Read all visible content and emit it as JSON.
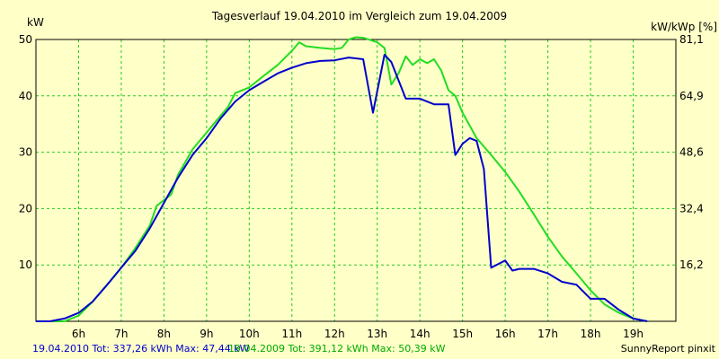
{
  "chart_data": {
    "type": "line",
    "title": "Tagesverlauf 19.04.2010 im Vergleich zum 19.04.2009",
    "ylabel_left": "kW",
    "ylabel_right": "kW/kWp [%]",
    "ylim": [
      0,
      50
    ],
    "xlim": [
      5.0,
      20.0
    ],
    "x_ticks": [
      "6h",
      "7h",
      "8h",
      "9h",
      "10h",
      "11h",
      "12h",
      "13h",
      "14h",
      "15h",
      "16h",
      "17h",
      "18h",
      "19h"
    ],
    "y_ticks_left": [
      "10",
      "20",
      "30",
      "40",
      "50"
    ],
    "y_ticks_right": [
      "16,2",
      "32,4",
      "48,6",
      "64,9",
      "81,1"
    ],
    "grid": true,
    "series": [
      {
        "name": "19.04.2010",
        "color": "#0000cc",
        "x": [
          5.0,
          5.33,
          5.67,
          6.0,
          6.33,
          6.67,
          7.0,
          7.33,
          7.67,
          8.0,
          8.33,
          8.67,
          9.0,
          9.33,
          9.67,
          10.0,
          10.33,
          10.67,
          11.0,
          11.33,
          11.67,
          12.0,
          12.33,
          12.67,
          12.9,
          13.17,
          13.33,
          13.67,
          14.0,
          14.33,
          14.67,
          14.83,
          15.0,
          15.17,
          15.33,
          15.5,
          15.67,
          16.0,
          16.17,
          16.33,
          16.67,
          17.0,
          17.33,
          17.67,
          18.0,
          18.33,
          18.67,
          19.0,
          19.33
        ],
        "y": [
          0,
          0,
          0.5,
          1.5,
          3.5,
          6.5,
          9.5,
          12.5,
          16.5,
          21.0,
          25.5,
          29.5,
          32.5,
          36.0,
          39.0,
          41.0,
          42.5,
          44.0,
          45.0,
          45.8,
          46.2,
          46.3,
          46.8,
          46.5,
          37.0,
          47.3,
          46.0,
          39.5,
          39.5,
          38.5,
          38.5,
          29.5,
          31.5,
          32.5,
          32.0,
          27.0,
          9.5,
          10.8,
          9.0,
          9.3,
          9.3,
          8.5,
          7.0,
          6.5,
          4.0,
          4.0,
          2.0,
          0.5,
          0
        ]
      },
      {
        "name": "19.04.2009",
        "color": "#22dd22",
        "x": [
          5.0,
          5.67,
          6.0,
          6.33,
          6.67,
          7.0,
          7.33,
          7.67,
          7.83,
          8.0,
          8.17,
          8.33,
          8.67,
          9.0,
          9.33,
          9.5,
          9.67,
          10.0,
          10.33,
          10.67,
          11.0,
          11.17,
          11.33,
          11.67,
          12.0,
          12.17,
          12.33,
          12.5,
          12.67,
          13.0,
          13.17,
          13.33,
          13.5,
          13.67,
          13.83,
          14.0,
          14.17,
          14.33,
          14.5,
          14.67,
          14.83,
          15.0,
          15.33,
          15.67,
          16.0,
          16.33,
          16.67,
          17.0,
          17.33,
          17.67,
          18.0,
          18.33,
          18.67,
          19.0,
          19.33
        ],
        "y": [
          0,
          0,
          1.0,
          3.5,
          6.5,
          9.5,
          13.0,
          17.0,
          20.5,
          21.5,
          22.5,
          26.0,
          30.5,
          33.5,
          36.5,
          38.0,
          40.5,
          41.5,
          43.5,
          45.5,
          48.0,
          49.5,
          48.8,
          48.5,
          48.3,
          48.5,
          50.0,
          50.4,
          50.3,
          49.5,
          48.5,
          42.0,
          44.0,
          47.0,
          45.5,
          46.5,
          45.8,
          46.5,
          44.5,
          41.0,
          40.0,
          37.0,
          32.5,
          29.5,
          26.5,
          23.0,
          19.0,
          15.0,
          11.5,
          8.5,
          5.5,
          3.0,
          1.5,
          0.5,
          0
        ]
      }
    ],
    "footer": {
      "blue_text": "19.04.2010 Tot: 337,26 kWh Max: 47,44 kW",
      "green_text": "19.04.2009 Tot: 391,12 kWh Max: 50,39 kW",
      "credit": "SunnyReport pinxit"
    }
  }
}
